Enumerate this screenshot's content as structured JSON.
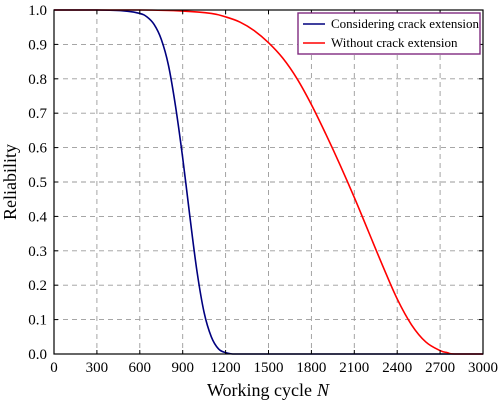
{
  "chart_data": {
    "type": "line",
    "xlabel": "Working cycle",
    "xlabel_var": "N",
    "ylabel": "Reliability",
    "xlim": [
      0,
      3000
    ],
    "ylim": [
      0,
      1.0
    ],
    "x_ticks": [
      0,
      300,
      600,
      900,
      1200,
      1500,
      1800,
      2100,
      2400,
      2700,
      3000
    ],
    "y_ticks": [
      0.0,
      0.1,
      0.2,
      0.3,
      0.4,
      0.5,
      0.6,
      0.7,
      0.8,
      0.9,
      1.0
    ],
    "y_tick_labels": [
      "0.0",
      "0.1",
      "0.2",
      "0.3",
      "0.4",
      "0.5",
      "0.6",
      "0.7",
      "0.8",
      "0.9",
      "1.0"
    ],
    "grid": true,
    "grid_style": "dashed",
    "legend_position": "top-right",
    "series": [
      {
        "name": "Considering crack extension",
        "color": "#00007f",
        "x": [
          0,
          300,
          500,
          600,
          650,
          700,
          750,
          800,
          850,
          900,
          950,
          1000,
          1050,
          1100,
          1150,
          1200,
          1250,
          1300,
          1500,
          2000,
          2500,
          3000
        ],
        "y": [
          1.0,
          1.0,
          0.997,
          0.99,
          0.98,
          0.958,
          0.915,
          0.84,
          0.72,
          0.57,
          0.4,
          0.24,
          0.12,
          0.05,
          0.015,
          0.004,
          0.0,
          0.0,
          0.0,
          0.0,
          0.0,
          0.0
        ]
      },
      {
        "name": "Without crack extension",
        "color": "#ff0000",
        "x": [
          0,
          600,
          900,
          1100,
          1200,
          1300,
          1400,
          1500,
          1600,
          1700,
          1800,
          1900,
          2000,
          2100,
          2200,
          2300,
          2400,
          2500,
          2600,
          2700,
          2750,
          2800,
          3000
        ],
        "y": [
          1.0,
          1.0,
          0.997,
          0.99,
          0.98,
          0.965,
          0.94,
          0.905,
          0.86,
          0.8,
          0.725,
          0.64,
          0.55,
          0.455,
          0.355,
          0.255,
          0.16,
          0.085,
          0.035,
          0.01,
          0.004,
          0.0,
          0.0
        ]
      }
    ]
  }
}
